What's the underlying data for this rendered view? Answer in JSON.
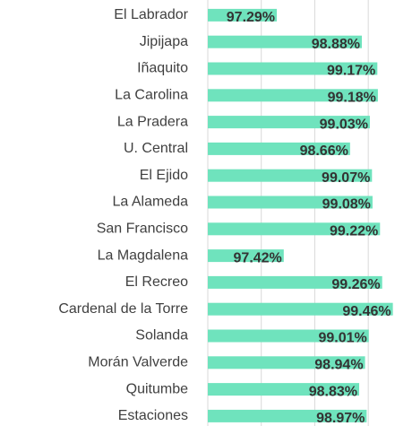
{
  "chart_data": {
    "type": "hbar",
    "categories": [
      "El Labrador",
      "Jipijapa",
      "Iñaquito",
      "La Carolina",
      "La Pradera",
      "U. Central",
      "El Ejido",
      "La Alameda",
      "San Francisco",
      "La Magdalena",
      "El Recreo",
      "Cardenal de la Torre",
      "Solanda",
      "Morán Valverde",
      "Quitumbe",
      "Estaciones"
    ],
    "values": [
      97.29,
      98.88,
      99.17,
      99.18,
      99.03,
      98.66,
      99.07,
      99.08,
      99.22,
      97.42,
      99.26,
      99.46,
      99.01,
      98.94,
      98.83,
      98.97
    ],
    "value_labels": [
      "97.29%",
      "98.88%",
      "99.17%",
      "99.18%",
      "99.03%",
      "98.66%",
      "99.07%",
      "99.08%",
      "99.22%",
      "97.42%",
      "99.26%",
      "99.46%",
      "99.01%",
      "98.94%",
      "98.83%",
      "98.97%"
    ],
    "color": "#6fe3bd",
    "xlim": [
      96,
      99.5
    ],
    "xticks": [
      96,
      97,
      98,
      99
    ],
    "grid": true
  }
}
